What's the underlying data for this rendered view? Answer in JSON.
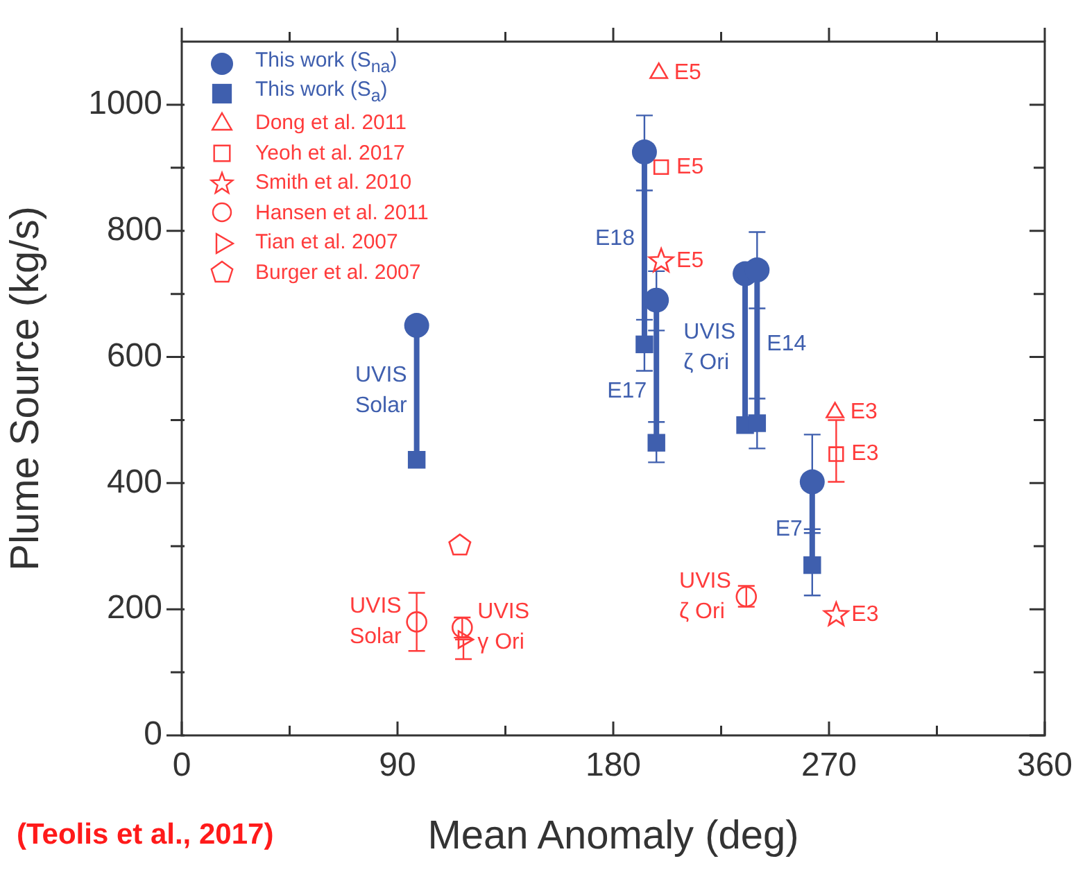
{
  "chart_data": {
    "type": "scatter",
    "xlabel": "Mean Anomaly (deg)",
    "ylabel": "Plume Source (kg/s)",
    "xlim": [
      0,
      360
    ],
    "xticks": [
      0,
      {
        "value": 45,
        "label": null
      },
      90,
      {
        "value": 135,
        "label": null
      },
      180,
      {
        "value": 225,
        "label": null
      },
      270,
      {
        "value": 315,
        "label": null
      },
      360
    ],
    "ylim": [
      0,
      1100
    ],
    "yticks": [
      0,
      {
        "value": 100,
        "label": null
      },
      200,
      {
        "value": 300,
        "label": null
      },
      400,
      {
        "value": 500,
        "label": null
      },
      600,
      {
        "value": 700,
        "label": null
      },
      800,
      {
        "value": 900,
        "label": null
      },
      1000
    ],
    "legend": "top left",
    "grid": false,
    "series": [
      {
        "type": "line",
        "color": "#3f5fae",
        "x": [
          98,
          98
        ],
        "values": [
          437,
          650
        ]
      },
      {
        "type": "line",
        "color": "#3f5fae",
        "x": [
          193,
          193
        ],
        "values": [
          620,
          925
        ]
      },
      {
        "type": "line",
        "color": "#3f5fae",
        "x": [
          198,
          198
        ],
        "values": [
          464,
          690
        ]
      },
      {
        "type": "line",
        "color": "#3f5fae",
        "x": [
          235,
          235
        ],
        "values": [
          492,
          732
        ]
      },
      {
        "type": "line",
        "color": "#3f5fae",
        "x": [
          240,
          240
        ],
        "values": [
          495,
          738
        ]
      },
      {
        "type": "line",
        "color": "#3f5fae",
        "x": [
          263,
          263
        ],
        "values": [
          270,
          402
        ]
      },
      {
        "name": "This work (S$_{na}$)",
        "color": "#3f5fae",
        "marker": "circle",
        "x": [
          98,
          193,
          198,
          235,
          240,
          263
        ],
        "values": [
          650,
          925,
          690,
          732,
          738,
          402
        ],
        "errors": [
          null,
          [
            864,
            983
          ],
          [
            642,
            736
          ],
          null,
          [
            677,
            798
          ],
          [
            327,
            477
          ]
        ]
      },
      {
        "name": "This work (S$_{a}$)",
        "color": "#3f5fae",
        "marker": "square",
        "x": [
          98,
          193,
          198,
          235,
          240,
          263
        ],
        "values": [
          437,
          620,
          464,
          492,
          495,
          270
        ],
        "errors": [
          null,
          [
            578,
            659
          ],
          [
            433,
            497
          ],
          null,
          [
            455,
            534
          ],
          [
            222,
            321
          ]
        ]
      },
      {
        "name": "Dong et al. 2011",
        "color": "#ff3b3b",
        "marker": "triangle",
        "x": [
          199,
          272.5
        ],
        "values": [
          1050,
          512
        ]
      },
      {
        "name": "Yeoh et al. 2017",
        "color": "#ff3b3b",
        "marker": "square",
        "x": [
          200,
          273
        ],
        "values": [
          901,
          446
        ],
        "errors": [
          null,
          [
            402,
            500
          ]
        ]
      },
      {
        "name": "Smith et al. 2010",
        "color": "#ff3b3b",
        "marker": "star",
        "x": [
          200,
          273
        ],
        "values": [
          752,
          191
        ]
      },
      {
        "name": "Hansen et al. 2011",
        "color": "#ff3b3b",
        "marker": "circle",
        "x": [
          98,
          117,
          235.5
        ],
        "values": [
          180,
          171,
          220
        ],
        "errors": [
          [
            134,
            226
          ],
          [
            155,
            187
          ],
          [
            204,
            237
          ]
        ]
      },
      {
        "name": "Tian et al. 2007",
        "color": "#ff3b3b",
        "marker": "triangle-right",
        "x": [
          117.5
        ],
        "values": [
          152
        ],
        "errors": [
          [
            121,
            152
          ]
        ]
      },
      {
        "name": "Burger et al. 2007",
        "color": "#ff3b3b",
        "x": [
          116
        ],
        "values": [
          301
        ]
      }
    ],
    "annotations": [
      {
        "text": "E5",
        "x": 199,
        "y": 1050
      },
      {
        "text": "E5",
        "x": 200,
        "y": 901
      },
      {
        "text": "E5",
        "x": 200,
        "y": 752
      },
      {
        "text": "E18",
        "x": 193,
        "y": 787
      },
      {
        "text": "E17",
        "x": 198,
        "y": 545
      },
      {
        "text": "UVIS\nζ Ori",
        "x": 235,
        "y": 615
      },
      {
        "text": "E14",
        "x": 240,
        "y": 620
      },
      {
        "text": "E7",
        "x": 263,
        "y": 327
      },
      {
        "text": "E3",
        "x": 272.5,
        "y": 512
      },
      {
        "text": "E3",
        "x": 273,
        "y": 446
      },
      {
        "text": "E3",
        "x": 273,
        "y": 191
      },
      {
        "text": "UVIS\nSolar",
        "x": 98,
        "y": 547
      },
      {
        "text": "UVIS\nSolar",
        "x": 98,
        "y": 180
      },
      {
        "text": "UVIS\nγ Ori",
        "x": 117,
        "y": 171
      },
      {
        "text": "UVIS\nζ Ori",
        "x": 235.5,
        "y": 220
      },
      "(Teolis et al., 2017)"
    ]
  }
}
